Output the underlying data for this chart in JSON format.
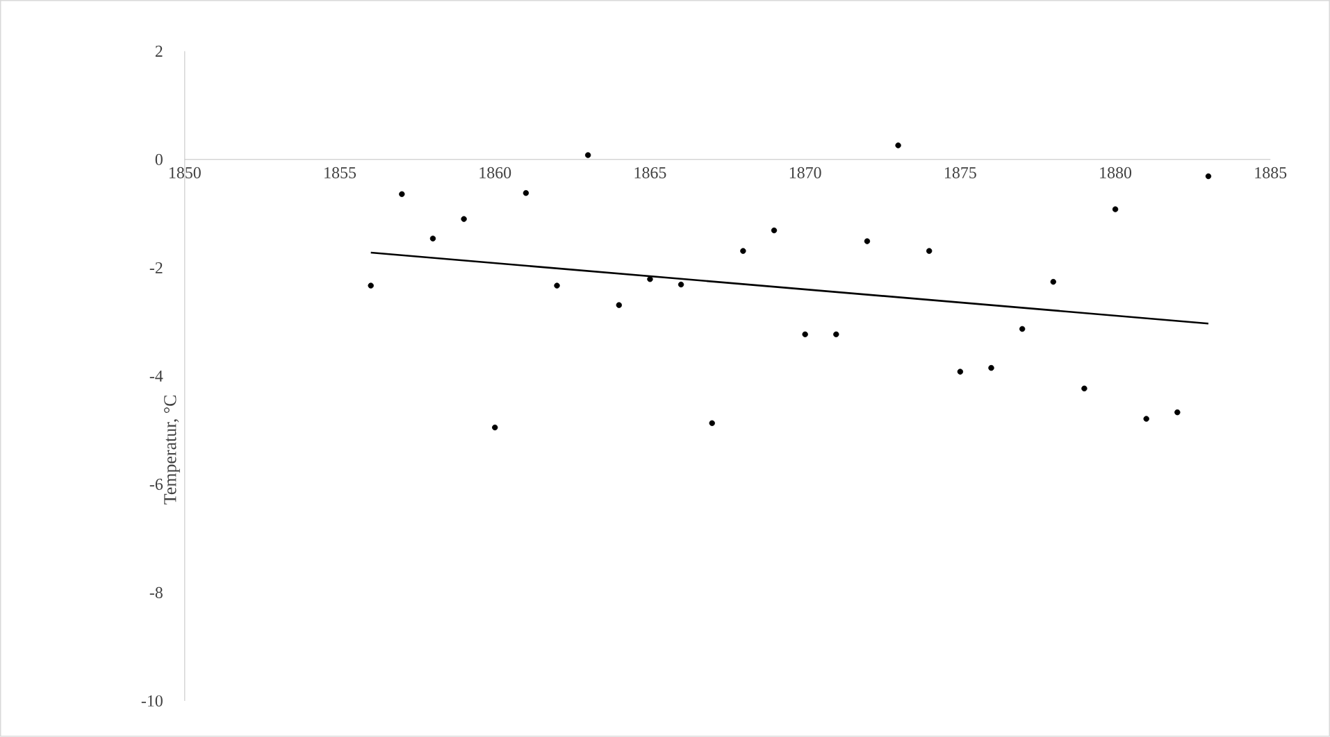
{
  "chart_data": {
    "type": "scatter",
    "ylabel": "Temperatur, °C",
    "xlim": [
      1850,
      1885
    ],
    "xticks": [
      1850,
      1855,
      1860,
      1865,
      1870,
      1875,
      1880,
      1885
    ],
    "ylim": [
      -10,
      2
    ],
    "yticks": [
      -10,
      -8,
      -6,
      -4,
      -2,
      0,
      2
    ],
    "marker": "circle",
    "series": [
      {
        "color": "#000000",
        "x": [
          1856,
          1857,
          1858,
          1859,
          1860,
          1861,
          1862,
          1863,
          1864,
          1865,
          1866,
          1867,
          1868,
          1869,
          1870,
          1871,
          1872,
          1873,
          1874,
          1875,
          1876,
          1877,
          1878,
          1879,
          1880,
          1881,
          1882,
          1883
        ],
        "values": [
          -2.33,
          -0.64,
          -1.46,
          -1.1,
          -4.95,
          -0.62,
          -2.33,
          0.08,
          -2.69,
          -2.21,
          -2.31,
          -4.87,
          -1.69,
          -1.31,
          -3.23,
          -3.23,
          -1.51,
          0.26,
          -1.69,
          -3.92,
          -3.85,
          -3.13,
          -2.26,
          -4.23,
          -0.92,
          -4.79,
          -4.67,
          -0.31
        ]
      },
      {
        "type": "line",
        "marker": "none",
        "color": "#000000",
        "x": [
          1856,
          1883
        ],
        "values": [
          -1.72,
          -3.03
        ]
      }
    ]
  }
}
